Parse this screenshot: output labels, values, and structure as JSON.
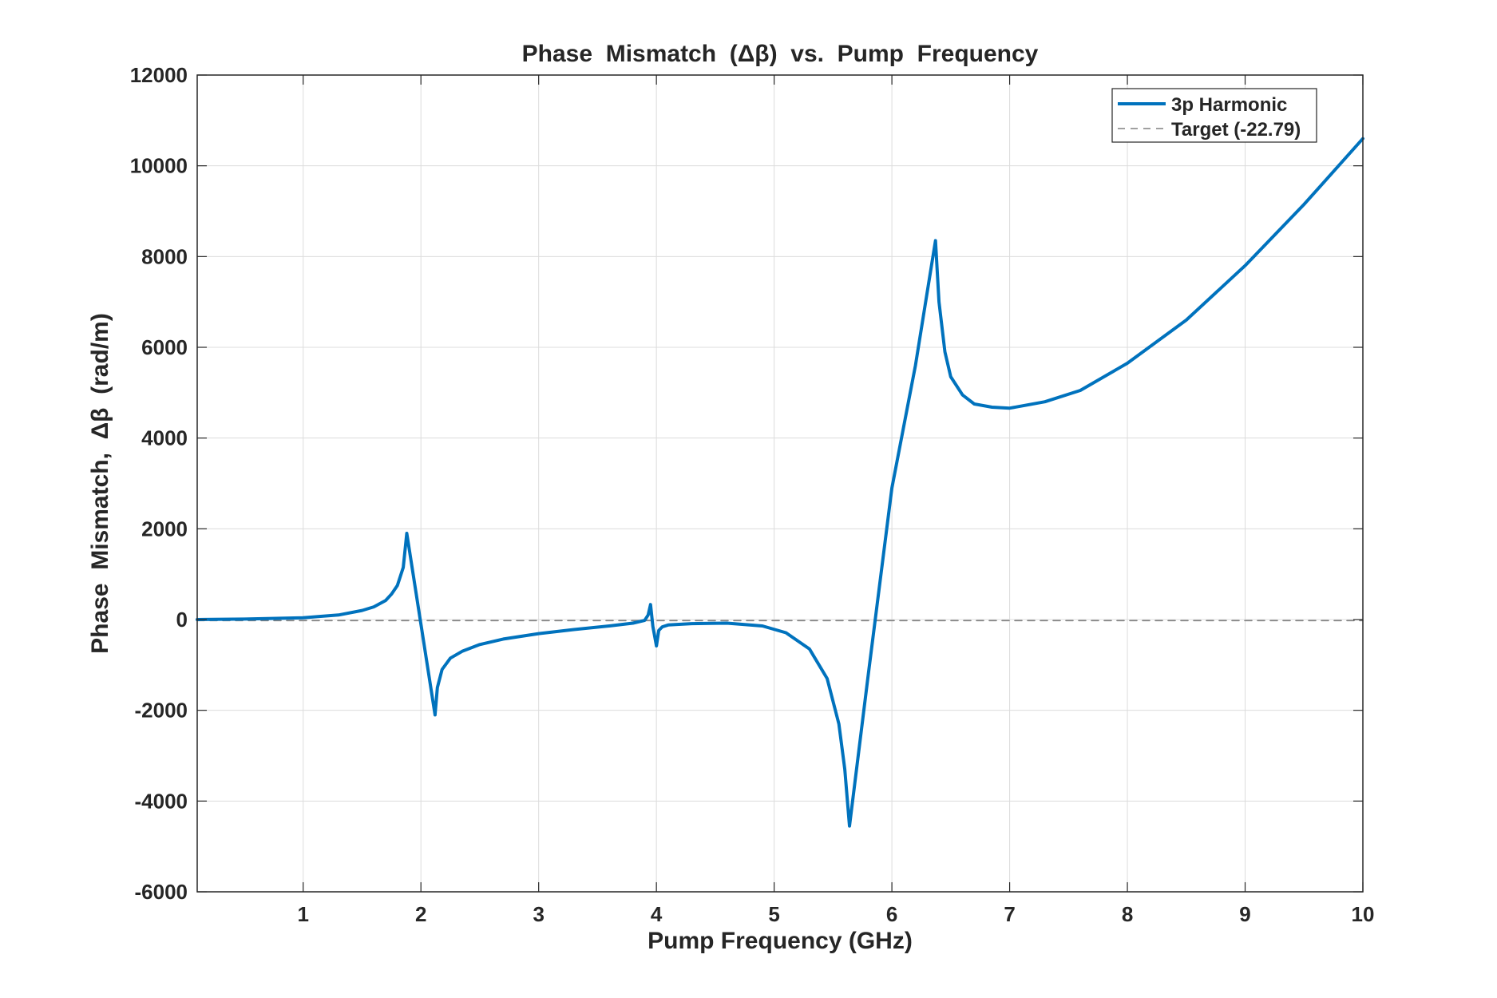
{
  "chart_data": {
    "type": "line",
    "title": "Phase  Mismatch  (Δβ)  vs.  Pump  Frequency",
    "xlabel": "Pump Frequency (GHz)",
    "ylabel": "Phase  Mismatch,  Δβ  (rad/m)",
    "xlim": [
      0.1,
      10
    ],
    "ylim": [
      -6000,
      12000
    ],
    "x_ticks": [
      1,
      2,
      3,
      4,
      5,
      6,
      7,
      8,
      9,
      10
    ],
    "y_ticks": [
      -6000,
      -4000,
      -2000,
      0,
      2000,
      4000,
      6000,
      8000,
      10000,
      12000
    ],
    "x_tick_labels": [
      "1",
      "2",
      "3",
      "4",
      "5",
      "6",
      "7",
      "8",
      "9",
      "10"
    ],
    "y_tick_labels": [
      "-6000",
      "-4000",
      "-2000",
      "0",
      "2000",
      "4000",
      "6000",
      "8000",
      "10000",
      "12000"
    ],
    "grid": true,
    "legend_position": "top-right",
    "series": [
      {
        "name": "3p Harmonic",
        "color": "#0072BD",
        "style": "solid",
        "x": [
          0.1,
          0.5,
          1.0,
          1.3,
          1.5,
          1.6,
          1.7,
          1.75,
          1.8,
          1.85,
          1.88,
          2.0,
          2.12,
          2.14,
          2.18,
          2.25,
          2.35,
          2.5,
          2.7,
          3.0,
          3.3,
          3.6,
          3.8,
          3.9,
          3.93,
          3.95,
          3.97,
          4.0,
          4.02,
          4.05,
          4.1,
          4.3,
          4.6,
          4.9,
          5.1,
          5.3,
          5.45,
          5.55,
          5.6,
          5.64,
          5.8,
          6.0,
          6.2,
          6.37,
          6.4,
          6.45,
          6.5,
          6.6,
          6.7,
          6.85,
          7.0,
          7.3,
          7.6,
          8.0,
          8.5,
          9.0,
          9.5,
          10.0
        ],
        "y": [
          0,
          10,
          40,
          100,
          200,
          280,
          420,
          560,
          750,
          1150,
          1900,
          -100,
          -2100,
          -1500,
          -1100,
          -850,
          -700,
          -550,
          -430,
          -310,
          -220,
          -140,
          -80,
          -20,
          100,
          330,
          -150,
          -580,
          -240,
          -160,
          -120,
          -90,
          -80,
          -140,
          -290,
          -650,
          -1300,
          -2300,
          -3300,
          -4550,
          -1200,
          2900,
          5600,
          8350,
          7000,
          5900,
          5350,
          4950,
          4750,
          4680,
          4660,
          4800,
          5050,
          5650,
          6600,
          7800,
          9150,
          10600
        ]
      },
      {
        "name": "Target (-22.79)",
        "color": "#808080",
        "style": "dashed",
        "x": [
          0.1,
          10
        ],
        "y": [
          -22.79,
          -22.79
        ]
      }
    ]
  }
}
